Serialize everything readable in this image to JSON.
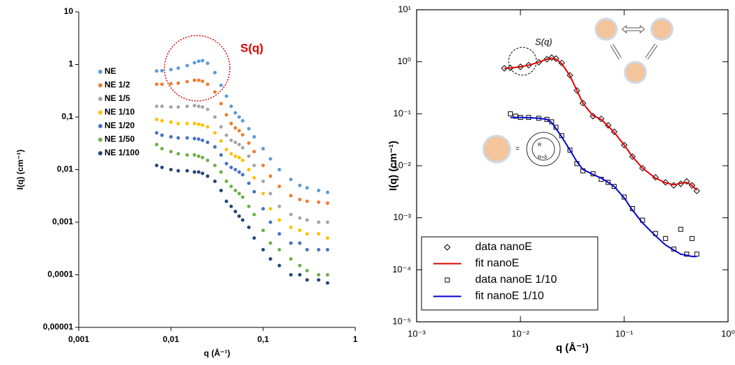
{
  "chart_data": [
    {
      "type": "scatter",
      "log_x": true,
      "log_y": true,
      "xlabel": "q (Å⁻¹)",
      "ylabel": "I(q) (cm⁻¹)",
      "annotation": "S(q)",
      "xlim": [
        0.001,
        1
      ],
      "ylim": [
        1e-05,
        10
      ],
      "xticks": [
        {
          "value": 0.001,
          "label": "0,001"
        },
        {
          "value": 0.01,
          "label": "0,01"
        },
        {
          "value": 0.1,
          "label": "0,1"
        },
        1
      ],
      "yticks": [
        {
          "value": 1e-05,
          "label": "0,00001"
        },
        {
          "value": 0.0001,
          "label": "0,0001"
        },
        {
          "value": 0.001,
          "label": "0,001"
        },
        {
          "value": 0.01,
          "label": "0,01"
        },
        {
          "value": 0.1,
          "label": "0,1"
        },
        1,
        10
      ],
      "x": [
        0.007,
        0.008,
        0.01,
        0.012,
        0.015,
        0.018,
        0.02,
        0.022,
        0.025,
        0.03,
        0.035,
        0.04,
        0.045,
        0.05,
        0.055,
        0.06,
        0.07,
        0.08,
        0.1,
        0.12,
        0.15,
        0.2,
        0.25,
        0.3,
        0.4,
        0.5
      ],
      "series": [
        {
          "name": "NE",
          "color": "#5b9bd5",
          "marker": "circle",
          "values": [
            0.75,
            0.76,
            0.8,
            0.85,
            0.95,
            1.08,
            1.15,
            1.18,
            1.05,
            0.7,
            0.4,
            0.25,
            0.16,
            0.12,
            0.1,
            0.085,
            0.06,
            0.042,
            0.025,
            0.016,
            0.01,
            0.0065,
            0.005,
            0.0045,
            0.004,
            0.0037
          ]
        },
        {
          "name": "NE 1/2",
          "color": "#ed7d31",
          "marker": "circle",
          "values": [
            0.42,
            0.42,
            0.43,
            0.44,
            0.47,
            0.5,
            0.5,
            0.48,
            0.42,
            0.3,
            0.18,
            0.11,
            0.075,
            0.062,
            0.055,
            0.046,
            0.032,
            0.022,
            0.012,
            0.0075,
            0.0048,
            0.0032,
            0.0027,
            0.0025,
            0.0024,
            0.0023
          ]
        },
        {
          "name": "NE 1/5",
          "color": "#a5a5a5",
          "marker": "circle",
          "values": [
            0.16,
            0.16,
            0.155,
            0.155,
            0.16,
            0.165,
            0.16,
            0.155,
            0.14,
            0.1,
            0.065,
            0.045,
            0.036,
            0.033,
            0.03,
            0.026,
            0.018,
            0.012,
            0.006,
            0.0035,
            0.002,
            0.0014,
            0.0012,
            0.0011,
            0.001,
            0.001
          ]
        },
        {
          "name": "NE 1/10",
          "color": "#ffc000",
          "marker": "circle",
          "values": [
            0.09,
            0.085,
            0.08,
            0.075,
            0.075,
            0.075,
            0.073,
            0.07,
            0.065,
            0.05,
            0.035,
            0.024,
            0.02,
            0.018,
            0.017,
            0.015,
            0.01,
            0.007,
            0.0035,
            0.0018,
            0.0011,
            0.0008,
            0.0007,
            0.0006,
            0.0006,
            0.0005
          ]
        },
        {
          "name": "NE 1/20",
          "color": "#4472c4",
          "marker": "circle",
          "values": [
            0.05,
            0.045,
            0.042,
            0.04,
            0.04,
            0.039,
            0.038,
            0.036,
            0.033,
            0.027,
            0.019,
            0.013,
            0.011,
            0.01,
            0.009,
            0.008,
            0.0055,
            0.0038,
            0.0018,
            0.001,
            0.0006,
            0.0004,
            0.0004,
            0.0003,
            0.0003,
            0.0003
          ]
        },
        {
          "name": "NE 1/50",
          "color": "#70ad47",
          "marker": "circle",
          "values": [
            0.03,
            0.025,
            0.022,
            0.02,
            0.019,
            0.019,
            0.018,
            0.017,
            0.015,
            0.012,
            0.009,
            0.006,
            0.0048,
            0.004,
            0.0035,
            0.003,
            0.002,
            0.0014,
            0.0007,
            0.0004,
            0.0003,
            0.0002,
            0.00015,
            0.00012,
            0.0001,
            0.0001
          ]
        },
        {
          "name": "NE 1/100",
          "color": "#264478",
          "marker": "circle",
          "values": [
            0.012,
            0.011,
            0.01,
            0.0095,
            0.0095,
            0.009,
            0.009,
            0.0085,
            0.0075,
            0.006,
            0.004,
            0.0025,
            0.002,
            0.0016,
            0.0013,
            0.0011,
            0.0008,
            0.0005,
            0.0003,
            0.0002,
            0.00015,
            0.0001,
            0.0001,
            8e-05,
            8e-05,
            7e-05
          ]
        }
      ]
    },
    {
      "type": "scatter",
      "log_x": true,
      "log_y": true,
      "xlabel": "q (Å⁻¹)",
      "ylabel": "I(q) (cm⁻¹)",
      "annotation": "S(q)",
      "xlim": [
        0.001,
        1
      ],
      "ylim": [
        1e-05,
        10
      ],
      "xticks": [
        {
          "value": 0.001,
          "label": "10⁻³"
        },
        {
          "value": 0.01,
          "label": "10⁻²"
        },
        {
          "value": 0.1,
          "label": "10⁻¹"
        },
        {
          "value": 1,
          "label": "10⁰"
        }
      ],
      "yticks": [
        {
          "value": 1e-05,
          "label": "10⁻⁵"
        },
        {
          "value": 0.0001,
          "label": "10⁻⁴"
        },
        {
          "value": 0.001,
          "label": "10⁻³"
        },
        {
          "value": 0.01,
          "label": "10⁻²"
        },
        {
          "value": 0.1,
          "label": "10⁻¹"
        },
        {
          "value": 1,
          "label": "10⁰"
        },
        {
          "value": 10,
          "label": "10¹"
        }
      ],
      "series": [
        {
          "name": "data nanoE",
          "color": "#000000",
          "marker": "diamond",
          "x": [
            0.007,
            0.008,
            0.01,
            0.012,
            0.015,
            0.018,
            0.02,
            0.022,
            0.025,
            0.03,
            0.035,
            0.04,
            0.05,
            0.06,
            0.07,
            0.08,
            0.1,
            0.12,
            0.15,
            0.2,
            0.25,
            0.3,
            0.35,
            0.4,
            0.45,
            0.5
          ],
          "values": [
            0.75,
            0.76,
            0.8,
            0.86,
            0.98,
            1.12,
            1.2,
            1.15,
            0.95,
            0.55,
            0.28,
            0.16,
            0.09,
            0.08,
            0.06,
            0.045,
            0.025,
            0.015,
            0.009,
            0.006,
            0.0048,
            0.0042,
            0.0045,
            0.005,
            0.0042,
            0.0033
          ]
        },
        {
          "name": "fit nanoE",
          "color": "#e00000",
          "marker": "line",
          "x": [
            0.007,
            0.008,
            0.01,
            0.012,
            0.015,
            0.018,
            0.02,
            0.022,
            0.025,
            0.03,
            0.035,
            0.04,
            0.05,
            0.06,
            0.07,
            0.08,
            0.1,
            0.12,
            0.15,
            0.2,
            0.25,
            0.3,
            0.35,
            0.4,
            0.45,
            0.5
          ],
          "values": [
            0.74,
            0.76,
            0.8,
            0.86,
            0.98,
            1.12,
            1.18,
            1.12,
            0.92,
            0.54,
            0.28,
            0.16,
            0.092,
            0.078,
            0.058,
            0.044,
            0.025,
            0.015,
            0.009,
            0.0058,
            0.0047,
            0.0043,
            0.0046,
            0.0048,
            0.0042,
            0.0034
          ]
        },
        {
          "name": "data nanoE 1/10",
          "color": "#000000",
          "marker": "square",
          "x": [
            0.008,
            0.009,
            0.01,
            0.012,
            0.015,
            0.018,
            0.02,
            0.022,
            0.025,
            0.03,
            0.035,
            0.04,
            0.05,
            0.06,
            0.07,
            0.08,
            0.1,
            0.12,
            0.15,
            0.2,
            0.25,
            0.3,
            0.35,
            0.4,
            0.45,
            0.5
          ],
          "values": [
            0.1,
            0.09,
            0.085,
            0.085,
            0.082,
            0.078,
            0.07,
            0.055,
            0.038,
            0.02,
            0.011,
            0.008,
            0.007,
            0.0055,
            0.0048,
            0.004,
            0.0025,
            0.0015,
            0.0009,
            0.0005,
            0.0004,
            0.00025,
            0.0006,
            0.0002,
            0.0004,
            0.0002
          ]
        },
        {
          "name": "fit nanoE 1/10",
          "color": "#0000cc",
          "marker": "line",
          "x": [
            0.008,
            0.009,
            0.01,
            0.012,
            0.015,
            0.018,
            0.02,
            0.022,
            0.025,
            0.03,
            0.035,
            0.04,
            0.05,
            0.06,
            0.07,
            0.08,
            0.1,
            0.12,
            0.15,
            0.2,
            0.25,
            0.3,
            0.35,
            0.4,
            0.45,
            0.5
          ],
          "values": [
            0.085,
            0.085,
            0.085,
            0.084,
            0.082,
            0.078,
            0.068,
            0.052,
            0.036,
            0.02,
            0.012,
            0.0085,
            0.0068,
            0.0058,
            0.0048,
            0.004,
            0.0024,
            0.0014,
            0.0008,
            0.00045,
            0.0003,
            0.00024,
            0.0002,
            0.00019,
            0.00018,
            0.00018
          ]
        }
      ]
    }
  ]
}
